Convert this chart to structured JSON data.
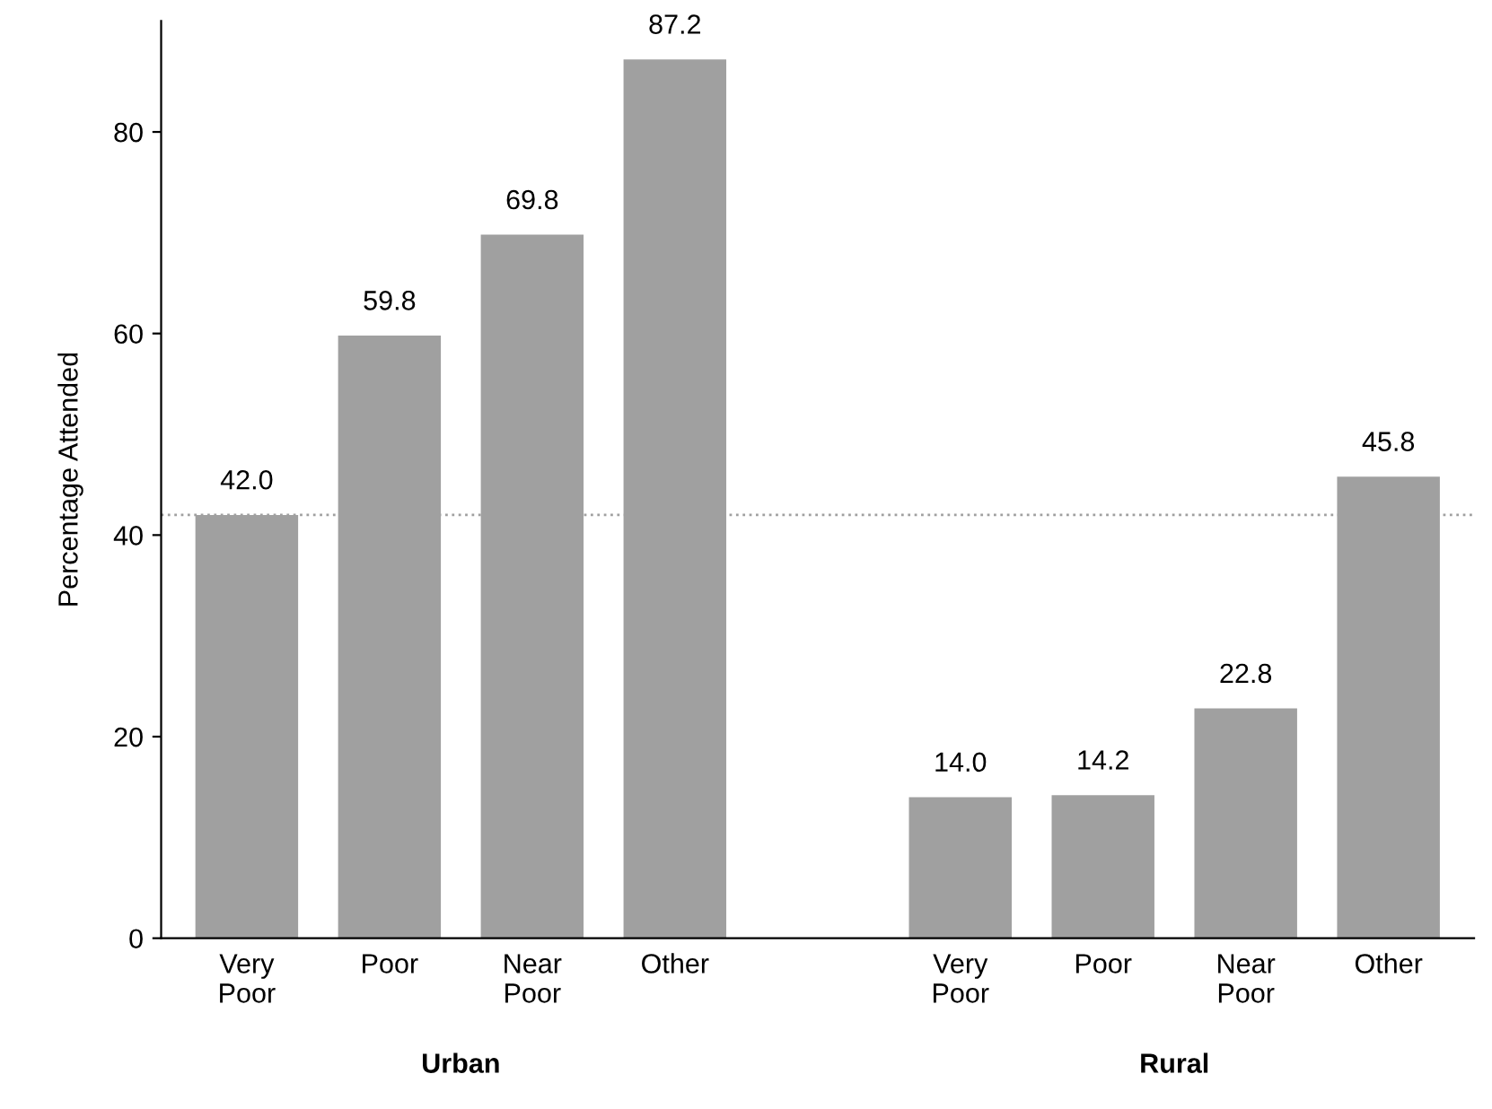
{
  "chart_data": {
    "type": "bar",
    "ylabel": "Percentage Attended",
    "categories": [
      "Very\nPoor",
      "Poor",
      "Near\nPoor",
      "Other",
      null,
      "Very\nPoor",
      "Poor",
      "Near\nPoor",
      "Other"
    ],
    "values": [
      42.0,
      59.8,
      69.8,
      87.2,
      null,
      14.0,
      14.2,
      22.8,
      45.8
    ],
    "value_labels": [
      "42.0",
      "59.8",
      "69.8",
      "87.2",
      null,
      "14.0",
      "14.2",
      "22.8",
      "45.8"
    ],
    "color": "#a0a0a0",
    "ylim": [
      0,
      91
    ],
    "yticks": [
      0,
      20,
      40,
      60,
      80
    ],
    "grid": false,
    "ref_lines": [
      {
        "axis": "y",
        "value": 42,
        "color": "#a0a0a0",
        "line_style": "dotted"
      }
    ],
    "annotations": [
      "Urban",
      "Rural"
    ]
  }
}
